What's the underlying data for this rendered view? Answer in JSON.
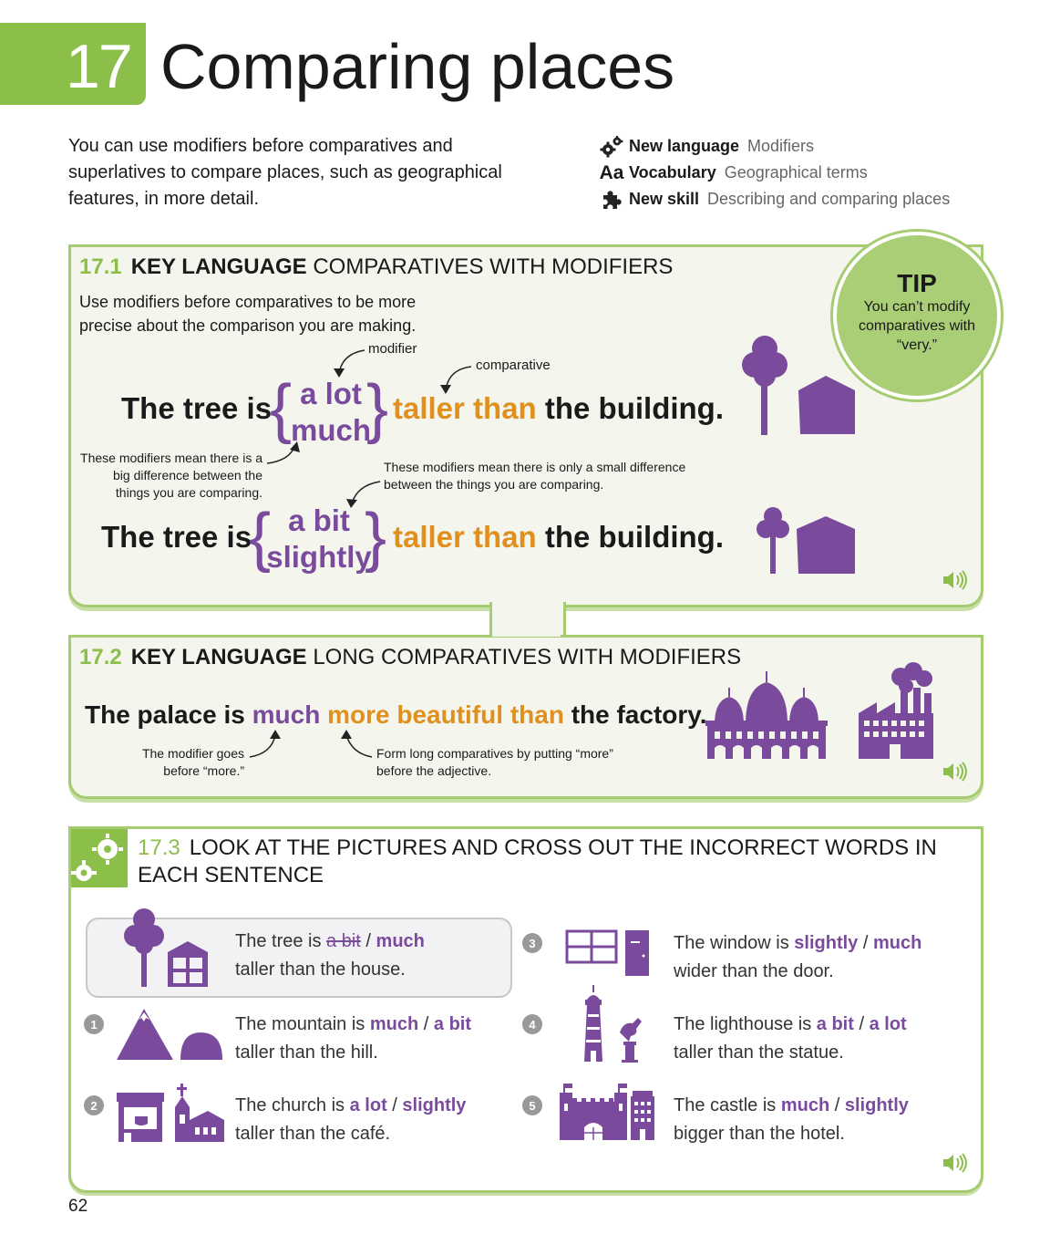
{
  "header": {
    "unit_number": "17",
    "title": "Comparing places"
  },
  "intro": "You can use modifiers before comparatives and superlatives to compare places, such as geographical features, in more detail.",
  "meta": [
    {
      "icon": "gears-icon",
      "key": "New language",
      "value": "Modifiers"
    },
    {
      "icon": "aa-icon",
      "icon_text": "Aa",
      "key": "Vocabulary",
      "value": "Geographical terms"
    },
    {
      "icon": "puzzle-icon",
      "key": "New skill",
      "value": "Describing and comparing places"
    }
  ],
  "tip": {
    "title": "TIP",
    "text": "You can’t modify comparatives with “very.”"
  },
  "s1": {
    "num": "17.1",
    "key": "KEY LANGUAGE",
    "rest": "COMPARATIVES WITH MODIFIERS",
    "desc": "Use modifiers before comparatives to be more precise about the comparison you are making.",
    "label_modifier": "modifier",
    "label_comparative": "comparative",
    "s_subject": "The tree is",
    "mod_a1": "a lot",
    "mod_a2": "much",
    "comp": "taller than",
    "s_object": "the building.",
    "note_big": "These modifiers mean there is a big difference between the things you are comparing.",
    "note_small": "These modifiers mean there is only a small difference between the things you are comparing.",
    "mod_b1": "a bit",
    "mod_b2": "slightly"
  },
  "s2": {
    "num": "17.2",
    "key": "KEY LANGUAGE",
    "rest": "LONG COMPARATIVES WITH MODIFIERS",
    "subject": "The palace is",
    "modifier": "much",
    "comp": "more beautiful than",
    "object": "the factory.",
    "note1": "The modifier goes before “more.”",
    "note2": "Form long comparatives by putting “more” before the adjective."
  },
  "s3": {
    "num": "17.3",
    "title": "LOOK AT THE PICTURES AND CROSS OUT THE INCORRECT WORDS IN EACH SENTENCE",
    "example": {
      "pre": "The tree is ",
      "opt1": "a bit",
      "opt2": "much",
      "line2": "taller than the house."
    },
    "items": [
      {
        "n": "1",
        "pre": "The mountain is ",
        "opt1": "much",
        "opt2": "a bit",
        "line2": "taller than the hill."
      },
      {
        "n": "2",
        "pre": "The church is ",
        "opt1": "a lot",
        "opt2": "slightly",
        "line2": "taller than the café."
      },
      {
        "n": "3",
        "pre": "The window is ",
        "opt1": "slightly",
        "opt2": "much",
        "line2": "wider than the door."
      },
      {
        "n": "4",
        "pre": "The lighthouse is ",
        "opt1": "a bit",
        "opt2": "a lot",
        "line2": "taller than the statue."
      },
      {
        "n": "5",
        "pre": "The castle is ",
        "opt1": "much",
        "opt2": "slightly",
        "line2": "bigger than the hotel."
      }
    ],
    "separator": "/"
  },
  "page_number": "62",
  "colors": {
    "green": "#8cbe4a",
    "purple": "#7a4b9c",
    "orange": "#e0901e"
  }
}
